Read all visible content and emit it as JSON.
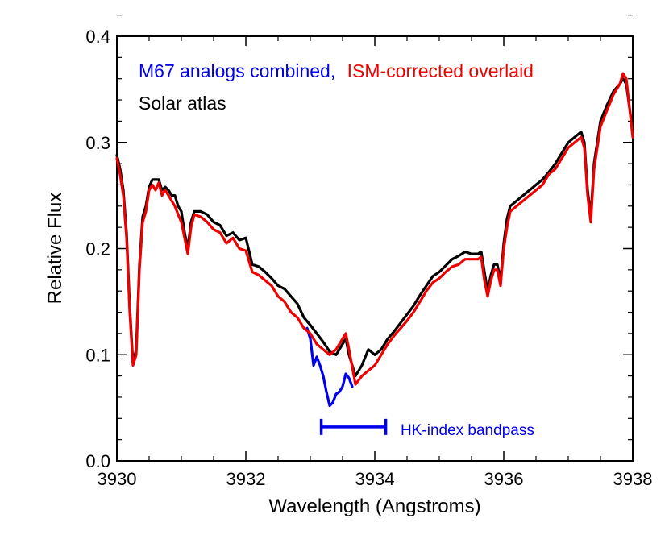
{
  "chart_data": {
    "type": "line",
    "xlabel": "Wavelength (Angstroms)",
    "ylabel": "Relative Flux",
    "xlim": [
      3930,
      3938
    ],
    "ylim": [
      0.0,
      0.4
    ],
    "x_ticks": [
      3930,
      3932,
      3934,
      3936,
      3938
    ],
    "x_tick_labels": [
      "3930",
      "3932",
      "3934",
      "3936",
      "3938"
    ],
    "y_ticks": [
      0.0,
      0.1,
      0.2,
      0.3,
      0.4
    ],
    "y_tick_labels": [
      "0.0",
      "0.1",
      "0.2",
      "0.3",
      "0.4"
    ],
    "legend": {
      "line1_part1": "M67 analogs combined,",
      "line1_part2": "ISM-corrected overlaid",
      "line2": "Solar atlas",
      "placement": "top-left"
    },
    "annotation": {
      "text": "HK-index bandpass",
      "x_range": [
        3933.17,
        3934.17
      ],
      "y": 0.032,
      "color": "#0000ee"
    },
    "series": [
      {
        "name": "M67 analogs combined",
        "color": "#0000ee",
        "x": [
          3932.95,
          3933.0,
          3933.05,
          3933.1,
          3933.15,
          3933.2,
          3933.25,
          3933.3,
          3933.35,
          3933.4,
          3933.45,
          3933.5,
          3933.55,
          3933.6,
          3933.65
        ],
        "y": [
          0.125,
          0.115,
          0.09,
          0.098,
          0.09,
          0.08,
          0.065,
          0.052,
          0.055,
          0.063,
          0.065,
          0.07,
          0.082,
          0.078,
          0.07
        ]
      },
      {
        "name": "ISM-corrected overlaid",
        "color": "#ee0000",
        "x": [
          3930.0,
          3930.05,
          3930.1,
          3930.15,
          3930.2,
          3930.25,
          3930.3,
          3930.35,
          3930.4,
          3930.45,
          3930.5,
          3930.55,
          3930.6,
          3930.65,
          3930.7,
          3930.75,
          3930.8,
          3930.85,
          3930.9,
          3930.95,
          3931.0,
          3931.05,
          3931.1,
          3931.15,
          3931.2,
          3931.3,
          3931.4,
          3931.5,
          3931.6,
          3931.7,
          3931.8,
          3931.9,
          3932.0,
          3932.1,
          3932.2,
          3932.3,
          3932.4,
          3932.5,
          3932.6,
          3932.7,
          3932.8,
          3932.9,
          3933.0,
          3933.1,
          3933.2,
          3933.3,
          3933.4,
          3933.5,
          3933.55,
          3933.6,
          3933.7,
          3933.8,
          3933.9,
          3934.0,
          3934.1,
          3934.2,
          3934.3,
          3934.4,
          3934.5,
          3934.6,
          3934.7,
          3934.8,
          3934.9,
          3935.0,
          3935.1,
          3935.2,
          3935.3,
          3935.4,
          3935.5,
          3935.6,
          3935.65,
          3935.7,
          3935.75,
          3935.8,
          3935.85,
          3935.9,
          3935.95,
          3936.0,
          3936.05,
          3936.1,
          3936.2,
          3936.3,
          3936.4,
          3936.5,
          3936.6,
          3936.7,
          3936.8,
          3936.9,
          3937.0,
          3937.1,
          3937.2,
          3937.25,
          3937.3,
          3937.35,
          3937.4,
          3937.5,
          3937.6,
          3937.7,
          3937.8,
          3937.85,
          3937.9,
          3938.0
        ],
        "y": [
          0.285,
          0.27,
          0.25,
          0.21,
          0.14,
          0.09,
          0.1,
          0.18,
          0.225,
          0.235,
          0.255,
          0.26,
          0.255,
          0.262,
          0.25,
          0.255,
          0.25,
          0.245,
          0.24,
          0.232,
          0.225,
          0.21,
          0.195,
          0.22,
          0.232,
          0.23,
          0.225,
          0.218,
          0.215,
          0.205,
          0.21,
          0.2,
          0.198,
          0.178,
          0.175,
          0.17,
          0.165,
          0.155,
          0.15,
          0.14,
          0.135,
          0.125,
          0.12,
          0.11,
          0.105,
          0.1,
          0.105,
          0.115,
          0.12,
          0.105,
          0.072,
          0.08,
          0.085,
          0.09,
          0.1,
          0.11,
          0.118,
          0.125,
          0.132,
          0.14,
          0.15,
          0.16,
          0.168,
          0.172,
          0.178,
          0.183,
          0.185,
          0.19,
          0.19,
          0.19,
          0.192,
          0.17,
          0.155,
          0.17,
          0.18,
          0.18,
          0.165,
          0.2,
          0.22,
          0.235,
          0.24,
          0.245,
          0.25,
          0.255,
          0.26,
          0.27,
          0.275,
          0.285,
          0.295,
          0.3,
          0.305,
          0.295,
          0.25,
          0.225,
          0.275,
          0.315,
          0.33,
          0.345,
          0.355,
          0.365,
          0.36,
          0.305
        ]
      },
      {
        "name": "Solar atlas",
        "color": "#000000",
        "x": [
          3930.0,
          3930.05,
          3930.1,
          3930.15,
          3930.2,
          3930.25,
          3930.3,
          3930.35,
          3930.4,
          3930.45,
          3930.5,
          3930.55,
          3930.6,
          3930.65,
          3930.7,
          3930.75,
          3930.8,
          3930.85,
          3930.9,
          3930.95,
          3931.0,
          3931.05,
          3931.1,
          3931.15,
          3931.2,
          3931.3,
          3931.4,
          3931.5,
          3931.6,
          3931.7,
          3931.8,
          3931.9,
          3932.0,
          3932.1,
          3932.2,
          3932.3,
          3932.4,
          3932.5,
          3932.6,
          3932.7,
          3932.8,
          3932.9,
          3933.0,
          3933.1,
          3933.2,
          3933.3,
          3933.4,
          3933.5,
          3933.55,
          3933.6,
          3933.7,
          3933.8,
          3933.9,
          3934.0,
          3934.1,
          3934.2,
          3934.3,
          3934.4,
          3934.5,
          3934.6,
          3934.7,
          3934.8,
          3934.9,
          3935.0,
          3935.1,
          3935.2,
          3935.3,
          3935.4,
          3935.5,
          3935.6,
          3935.65,
          3935.7,
          3935.75,
          3935.8,
          3935.85,
          3935.9,
          3935.95,
          3936.0,
          3936.05,
          3936.1,
          3936.2,
          3936.3,
          3936.4,
          3936.5,
          3936.6,
          3936.7,
          3936.8,
          3936.9,
          3937.0,
          3937.1,
          3937.2,
          3937.25,
          3937.3,
          3937.35,
          3937.4,
          3937.5,
          3937.6,
          3937.7,
          3937.8,
          3937.85,
          3937.9,
          3938.0
        ],
        "y": [
          0.288,
          0.275,
          0.255,
          0.215,
          0.145,
          0.092,
          0.105,
          0.185,
          0.23,
          0.24,
          0.258,
          0.265,
          0.265,
          0.265,
          0.255,
          0.258,
          0.255,
          0.25,
          0.25,
          0.24,
          0.235,
          0.215,
          0.2,
          0.225,
          0.235,
          0.235,
          0.232,
          0.225,
          0.222,
          0.212,
          0.215,
          0.208,
          0.21,
          0.185,
          0.183,
          0.178,
          0.172,
          0.165,
          0.162,
          0.155,
          0.148,
          0.135,
          0.128,
          0.12,
          0.112,
          0.103,
          0.1,
          0.11,
          0.115,
          0.1,
          0.08,
          0.09,
          0.105,
          0.1,
          0.105,
          0.115,
          0.122,
          0.13,
          0.138,
          0.146,
          0.156,
          0.165,
          0.174,
          0.178,
          0.184,
          0.19,
          0.193,
          0.197,
          0.195,
          0.195,
          0.197,
          0.178,
          0.16,
          0.175,
          0.185,
          0.185,
          0.17,
          0.205,
          0.228,
          0.24,
          0.245,
          0.25,
          0.255,
          0.26,
          0.265,
          0.272,
          0.28,
          0.29,
          0.3,
          0.305,
          0.31,
          0.3,
          0.255,
          0.23,
          0.28,
          0.32,
          0.335,
          0.348,
          0.355,
          0.36,
          0.355,
          0.31
        ]
      }
    ]
  }
}
